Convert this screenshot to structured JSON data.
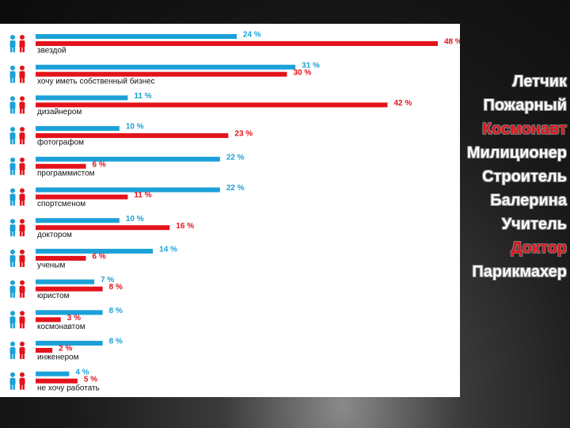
{
  "chart_data": {
    "type": "bar",
    "categories": [
      "звездой",
      "хочу иметь  собственный бизнес",
      "дизайнером",
      "фотографом",
      "программистом",
      "спортсменом",
      "доктором",
      "ученым",
      "юристом",
      "космонавтом",
      "инженером",
      "не хочу работать"
    ],
    "series": [
      {
        "color": "#1ba1d8",
        "values": [
          24,
          31,
          11,
          10,
          22,
          22,
          10,
          14,
          7,
          8,
          8,
          4
        ],
        "value_labels": [
          "24 %",
          "31 %",
          "11 %",
          "10 %",
          "22 %",
          "22 %",
          "10 %",
          "14 %",
          "7 %",
          "8 %",
          "8 %",
          "4 %"
        ]
      },
      {
        "color": "#e3131b",
        "values": [
          48,
          30,
          42,
          23,
          6,
          11,
          16,
          6,
          8,
          3,
          2,
          5
        ],
        "value_labels": [
          "48 %",
          "30 %",
          "42 %",
          "23 %",
          "6 %",
          "11 %",
          "16 %",
          "6 %",
          "8 %",
          "3 %",
          "2 %",
          "5 %"
        ]
      }
    ]
  },
  "side_list": [
    {
      "text": "Летчик",
      "color": "#ffffff"
    },
    {
      "text": "Пожарный",
      "color": "#ffffff"
    },
    {
      "text": "Космонавт",
      "color": "#e3131b"
    },
    {
      "text": "Милиционер",
      "color": "#ffffff"
    },
    {
      "text": "Строитель",
      "color": "#ffffff"
    },
    {
      "text": "Балерина",
      "color": "#ffffff"
    },
    {
      "text": "Учитель",
      "color": "#ffffff"
    },
    {
      "text": "Доктор",
      "color": "#e3131b"
    },
    {
      "text": "Парикмахер",
      "color": "#ffffff"
    }
  ]
}
